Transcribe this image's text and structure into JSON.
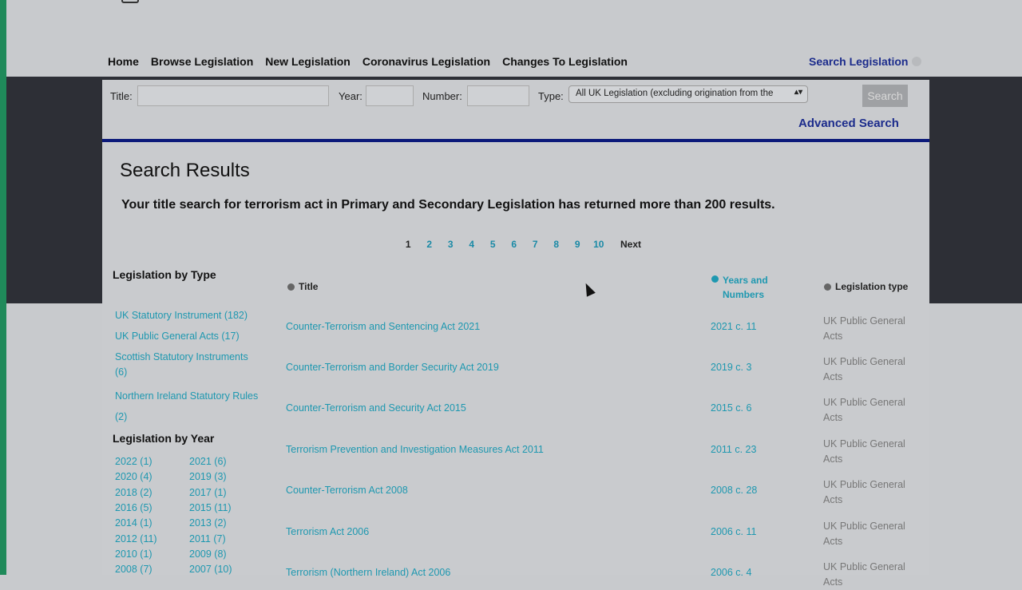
{
  "nav": {
    "items": [
      "Home",
      "Browse Legislation",
      "New Legislation",
      "Coronavirus Legislation",
      "Changes To Legislation"
    ],
    "search_legislation": "Search Legislation"
  },
  "form": {
    "title_label": "Title:",
    "title_value": "",
    "year_label": "Year:",
    "year_value": "",
    "number_label": "Number:",
    "number_value": "",
    "type_label": "Type:",
    "type_value": "All UK Legislation (excluding origination from the",
    "search_button": "Search",
    "advanced_search": "Advanced Search"
  },
  "results": {
    "heading": "Search Results",
    "summary": "Your title search for terrorism act in Primary and Secondary Legislation has returned more than 200 results.",
    "pages": [
      "1",
      "2",
      "3",
      "4",
      "5",
      "6",
      "7",
      "8",
      "9",
      "10"
    ],
    "current_page": "1",
    "next": "Next"
  },
  "sidebar": {
    "by_type_heading": "Legislation by Type",
    "types": [
      "UK Statutory Instrument   (182)",
      "UK Public General Acts (17)",
      "Scottish Statutory Instruments (6)",
      "Northern Ireland Statutory Rules (2)"
    ],
    "by_year_heading": "Legislation by Year",
    "years": [
      "2022 (1)",
      "2021 (6)",
      "2020 (4)",
      "2019 (3)",
      "2018 (2)",
      "2017 (1)",
      "2016 (5)",
      "2015 (11)",
      "2014 (1)",
      "2013 (2)",
      "2012 (11)",
      "2011 (7)",
      "2010 (1)",
      "2009 (8)",
      "2008 (7)",
      "2007 (10)"
    ]
  },
  "table": {
    "headers": {
      "title": "Title",
      "years": "Years and Numbers",
      "type": "Legislation type"
    },
    "rows": [
      {
        "title": "Counter-Terrorism and Sentencing Act 2021",
        "year": "2021 c. 11",
        "type": "UK Public General Acts"
      },
      {
        "title": "Counter-Terrorism and Border Security Act 2019",
        "year": "2019 c. 3",
        "type": "UK Public General Acts"
      },
      {
        "title": "Counter-Terrorism and Security Act 2015",
        "year": "2015 c. 6",
        "type": "UK Public General Acts"
      },
      {
        "title": "Terrorism Prevention and Investigation Measures Act 2011",
        "year": "2011 c. 23",
        "type": "UK Public General Acts"
      },
      {
        "title": "Counter-Terrorism Act 2008",
        "year": "2008 c. 28",
        "type": "UK Public General Acts"
      },
      {
        "title": "Terrorism Act 2006",
        "year": "2006 c. 11",
        "type": "UK Public General Acts"
      },
      {
        "title": "Terrorism (Northern Ireland) Act 2006",
        "year": "2006 c. 4",
        "type": "UK Public General Acts"
      }
    ]
  },
  "colors": {
    "link": "#1e98b0",
    "nav_blue": "#1c2c8c",
    "rule": "#0c1a7a",
    "band": "#2d2f36"
  }
}
